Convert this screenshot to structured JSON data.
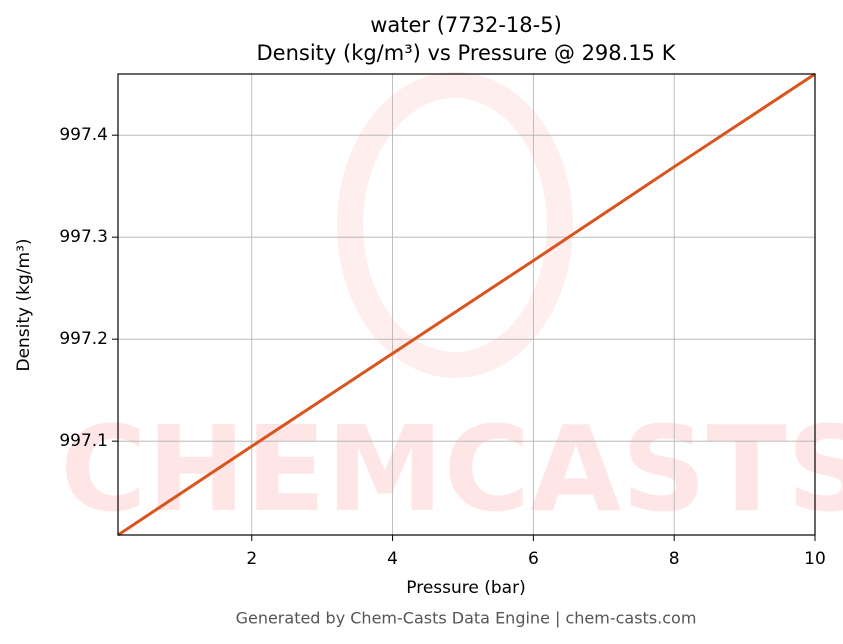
{
  "chart_data": {
    "type": "line",
    "title": "water (7732-18-5)",
    "subtitle": "Density (kg/m³) vs Pressure @ 298.15 K",
    "x_label": "Pressure (bar)",
    "y_label": "Density (kg/m³)",
    "footer": "Generated by Chem-Casts Data Engine | chem-casts.com",
    "watermark": "CHEMCASTS",
    "x": [
      0.1,
      2,
      4,
      6,
      8,
      10
    ],
    "series": [
      {
        "name": "Density",
        "color": "#d9541e",
        "values": [
          997.008,
          997.095,
          997.186,
          997.277,
          997.369,
          997.46
        ]
      }
    ],
    "xlim": [
      0.1,
      10
    ],
    "xticks": [
      2,
      4,
      6,
      8,
      10
    ],
    "ylim": [
      997.008,
      997.46
    ],
    "yticks": [
      997.1,
      997.2,
      997.3,
      997.4
    ],
    "grid": true
  }
}
